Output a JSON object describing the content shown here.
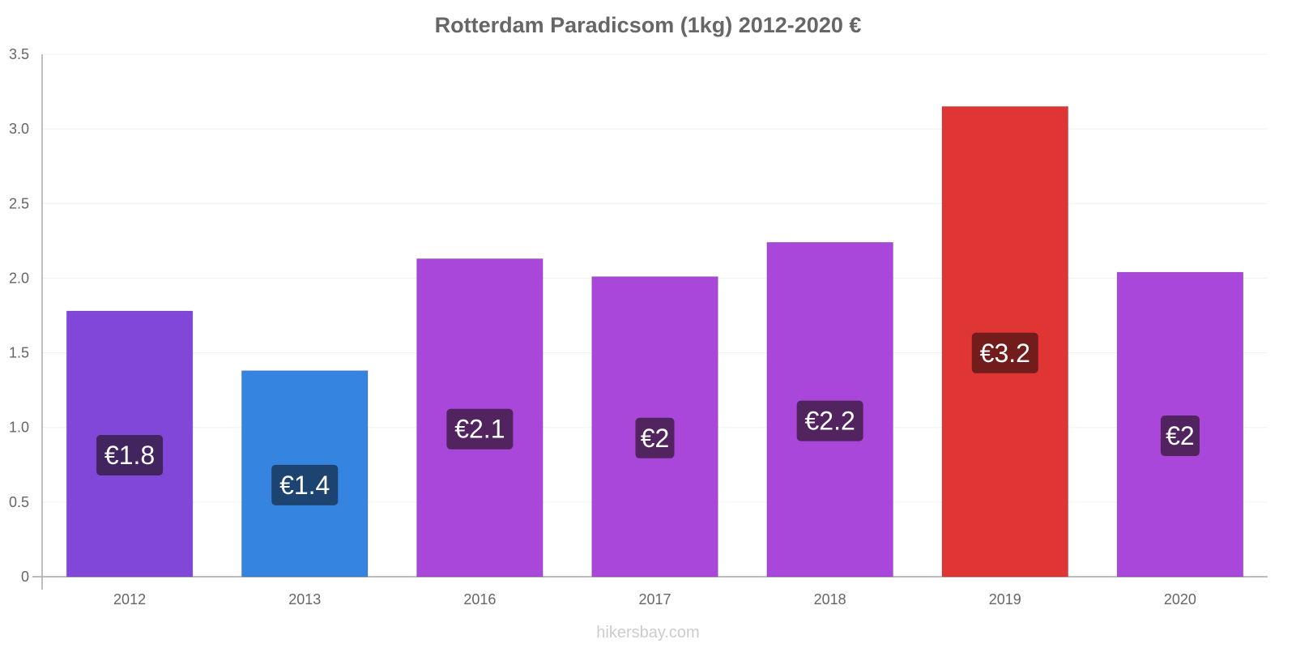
{
  "chart_data": {
    "type": "bar",
    "title": "Rotterdam Paradicsom (1kg) 2012-2020 €",
    "categories": [
      "2012",
      "2013",
      "2016",
      "2017",
      "2018",
      "2019",
      "2020"
    ],
    "values": [
      1.78,
      1.38,
      2.13,
      2.01,
      2.24,
      3.15,
      2.04
    ],
    "data_labels": [
      "€1.8",
      "€1.4",
      "€2.1",
      "€2",
      "€2.2",
      "€3.2",
      "€2"
    ],
    "ylim": [
      0,
      3.5
    ],
    "yticks": [
      0,
      0.5,
      1.0,
      1.5,
      2.0,
      2.5,
      3.0,
      3.5
    ],
    "ytick_labels": [
      "0",
      "0.5",
      "1.0",
      "1.5",
      "2.0",
      "2.5",
      "3.0",
      "3.5"
    ],
    "xlabel": "",
    "ylabel": "",
    "grid": true,
    "legend": false,
    "bar_colors": [
      "#8047d9",
      "#3584e0",
      "#a847d9",
      "#a847d9",
      "#a847d9",
      "#e03535",
      "#a847d9"
    ],
    "label_colors": [
      "#42245e",
      "#1d4470",
      "#52245f",
      "#52245f",
      "#52245f",
      "#721c1c",
      "#52245f"
    ]
  },
  "watermark": "hikersbay.com"
}
